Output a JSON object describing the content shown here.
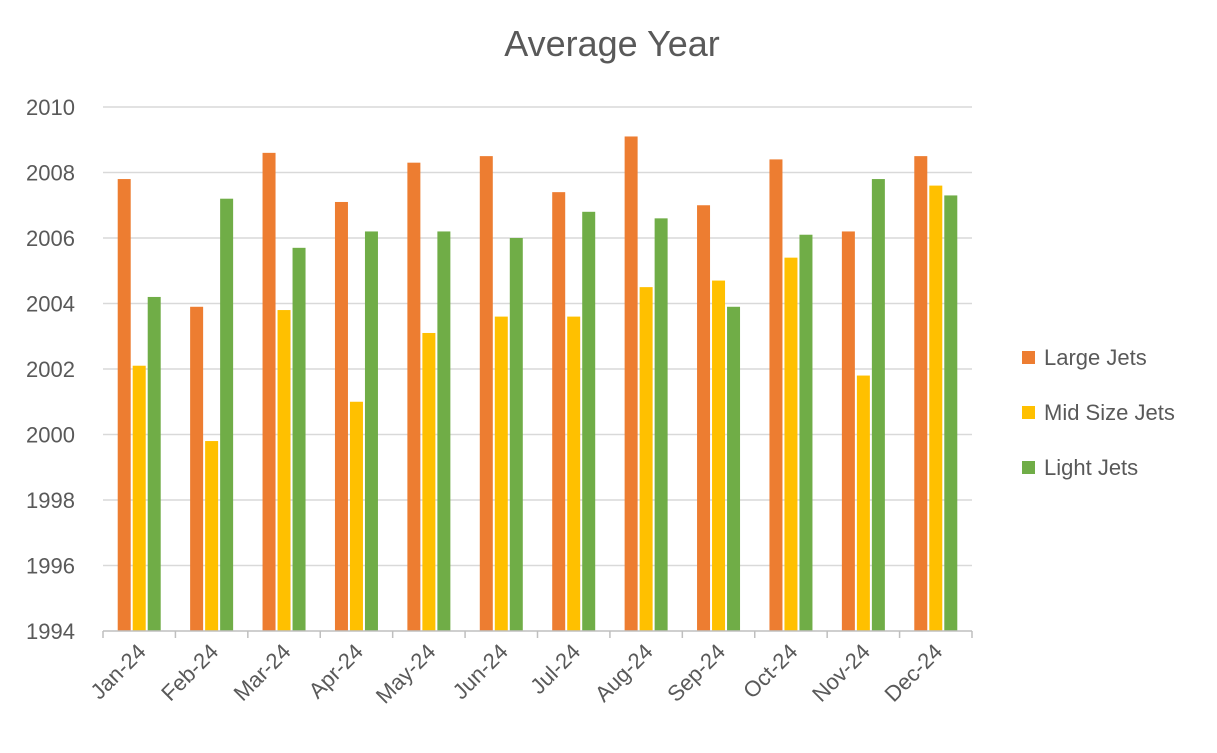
{
  "chart_data": {
    "type": "bar",
    "title": "Average Year",
    "xlabel": "",
    "ylabel": "",
    "ylim": [
      1994,
      2010
    ],
    "yticks": [
      1994,
      1996,
      1998,
      2000,
      2002,
      2004,
      2006,
      2008,
      2010
    ],
    "grid": true,
    "legend_position": "right",
    "categories": [
      "Jan-24",
      "Feb-24",
      "Mar-24",
      "Apr-24",
      "May-24",
      "Jun-24",
      "Jul-24",
      "Aug-24",
      "Sep-24",
      "Oct-24",
      "Nov-24",
      "Dec-24"
    ],
    "series": [
      {
        "name": "Large Jets",
        "color": "#ED7D31",
        "values": [
          2007.8,
          2003.9,
          2008.6,
          2007.1,
          2008.3,
          2008.5,
          2007.4,
          2009.1,
          2007.0,
          2008.4,
          2006.2,
          2008.5
        ]
      },
      {
        "name": "Mid Size Jets",
        "color": "#FFC000",
        "values": [
          2002.1,
          1999.8,
          2003.8,
          2001.0,
          2003.1,
          2003.6,
          2003.6,
          2004.5,
          2004.7,
          2005.4,
          2001.8,
          2007.6
        ]
      },
      {
        "name": "Light Jets",
        "color": "#70AD47",
        "values": [
          2004.2,
          2007.2,
          2005.7,
          2006.2,
          2006.2,
          2006.0,
          2006.8,
          2006.6,
          2003.9,
          2006.1,
          2007.8,
          2007.3
        ]
      }
    ]
  }
}
